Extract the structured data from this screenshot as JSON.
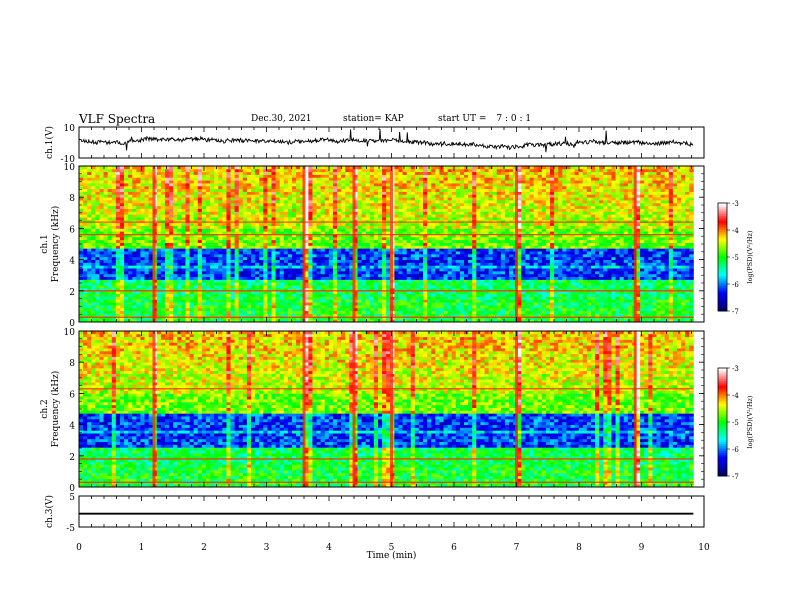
{
  "header": {
    "title": "VLF Spectra",
    "date": "Dec.30, 2021",
    "station": "station= KAP",
    "start_label": "start  UT =",
    "start_value": "7 : 0  : 1"
  },
  "colors": {
    "trace": "#000000",
    "colormap": [
      "#000066",
      "#0000ff",
      "#00ffff",
      "#00ff00",
      "#ffff00",
      "#ff0000",
      "#ffffff"
    ]
  },
  "chart_data": [
    {
      "type": "line",
      "name": "ch1-waveform",
      "ylabel": "ch.1(V)",
      "ylim": [
        -10,
        10
      ],
      "y_ticks": [
        "10",
        "-10"
      ],
      "x_range_min": [
        0,
        10
      ],
      "data_extent_min": 9.83,
      "trace_range_v": [
        -4,
        6
      ]
    },
    {
      "type": "heatmap",
      "name": "ch1-spectrogram",
      "ylabel_lines": [
        "ch.1",
        "Frequency  (kHz)"
      ],
      "ylim_khz": [
        0,
        10
      ],
      "y_ticks": [
        "0",
        "2",
        "4",
        "6",
        "8",
        "10"
      ],
      "x_range_min": [
        0,
        10
      ],
      "colorbar": {
        "label": "log(PSD)(V²/Hz)",
        "range": [
          -7,
          -3
        ],
        "ticks": [
          "-3",
          "-4",
          "-5",
          "-6",
          "-7"
        ]
      },
      "low_power_bands_khz": [
        [
          2.8,
          3.4
        ],
        [
          3.7,
          4.8
        ]
      ],
      "narrowband_lines_khz": [
        0.3,
        2.0,
        5.6,
        6.4
      ],
      "broadband_bursts_min": [
        1.2,
        3.6,
        4.4,
        5.0,
        7.0,
        8.9
      ]
    },
    {
      "type": "heatmap",
      "name": "ch2-spectrogram",
      "ylabel_lines": [
        "ch.2",
        "Frequency  (kHz)"
      ],
      "ylim_khz": [
        0,
        10
      ],
      "y_ticks": [
        "0",
        "2",
        "4",
        "6",
        "8",
        "10"
      ],
      "x_range_min": [
        0,
        10
      ],
      "colorbar": {
        "label": "log(PSD)(V²/Hz)",
        "range": [
          -7,
          -3
        ],
        "ticks": [
          "-3",
          "-4",
          "-5",
          "-6",
          "-7"
        ]
      },
      "low_power_bands_khz": [
        [
          2.5,
          3.4
        ],
        [
          3.6,
          4.7
        ]
      ],
      "narrowband_lines_khz": [
        0.3,
        1.8,
        6.3
      ],
      "broadband_bursts_min": [
        1.2,
        3.6,
        4.4,
        5.0,
        7.0,
        8.9
      ]
    },
    {
      "type": "line",
      "name": "ch3-waveform",
      "ylabel": "ch.3(V)",
      "ylim": [
        -5,
        5
      ],
      "y_ticks": [
        "5",
        "-5"
      ],
      "x_range_min": [
        0,
        10
      ],
      "data_extent_min": 9.83,
      "band_v": [
        -1.0,
        -0.4
      ],
      "xlabel": "Time  (min)",
      "x_ticks": [
        "0",
        "1",
        "2",
        "3",
        "4",
        "5",
        "6",
        "7",
        "8",
        "9",
        "10"
      ]
    }
  ]
}
